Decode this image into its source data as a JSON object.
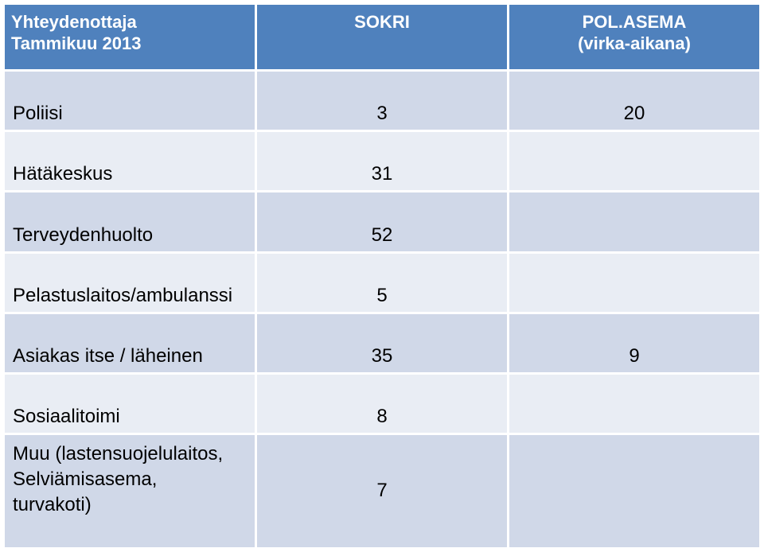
{
  "header": {
    "col1_line1": "Yhteydenottaja",
    "col1_line2": "Tammikuu 2013",
    "col2": "SOKRI",
    "col3_line1": "POL.ASEMA",
    "col3_line2": "(virka-aikana)"
  },
  "rows": [
    {
      "label": "Poliisi",
      "sokri": "3",
      "pol": "20"
    },
    {
      "label": "Hätäkeskus",
      "sokri": "31",
      "pol": ""
    },
    {
      "label": "Terveydenhuolto",
      "sokri": "52",
      "pol": ""
    },
    {
      "label": "Pelastuslaitos/ambulanssi",
      "sokri": "5",
      "pol": ""
    },
    {
      "label": "Asiakas itse / läheinen",
      "sokri": "35",
      "pol": "9"
    },
    {
      "label": "Sosiaalitoimi",
      "sokri": "8",
      "pol": ""
    },
    {
      "label": "Muu (lastensuojelulaitos,\nSelviämisasema,\nturvakoti)",
      "sokri": "7",
      "pol": ""
    }
  ],
  "colors": {
    "header": "#4f81bd",
    "row_dark": "#d0d8e8",
    "row_light": "#e9edf4"
  }
}
